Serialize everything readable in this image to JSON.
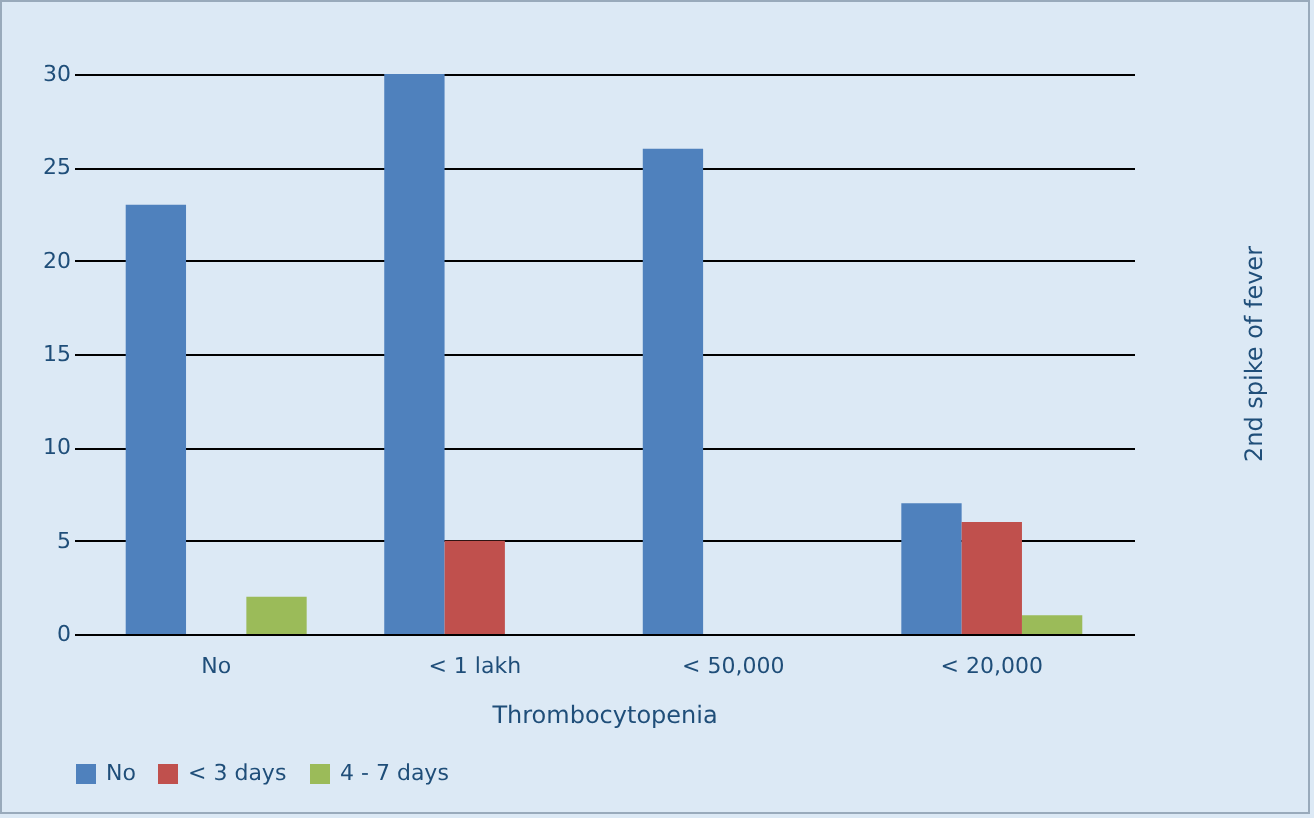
{
  "chart_data": {
    "type": "bar",
    "xlabel": "Thrombocytopenia",
    "categories": [
      "No",
      "< 1 lakh",
      "< 50,000",
      "< 20,000"
    ],
    "series": [
      {
        "name": "No",
        "color": "#4f81bd",
        "values": [
          23,
          30,
          26,
          7
        ]
      },
      {
        "name": "< 3 days",
        "color": "#c0504d",
        "values": [
          0,
          5,
          0,
          6
        ]
      },
      {
        "name": "4 - 7 days",
        "color": "#9bbb59",
        "values": [
          2,
          0,
          0,
          1
        ]
      }
    ],
    "ylim": [
      0,
      30
    ],
    "yticks": [
      0,
      5,
      10,
      15,
      20,
      25,
      30
    ],
    "grid": "y",
    "legend": "bottom",
    "annotations": [
      "2nd spike of fever"
    ]
  }
}
